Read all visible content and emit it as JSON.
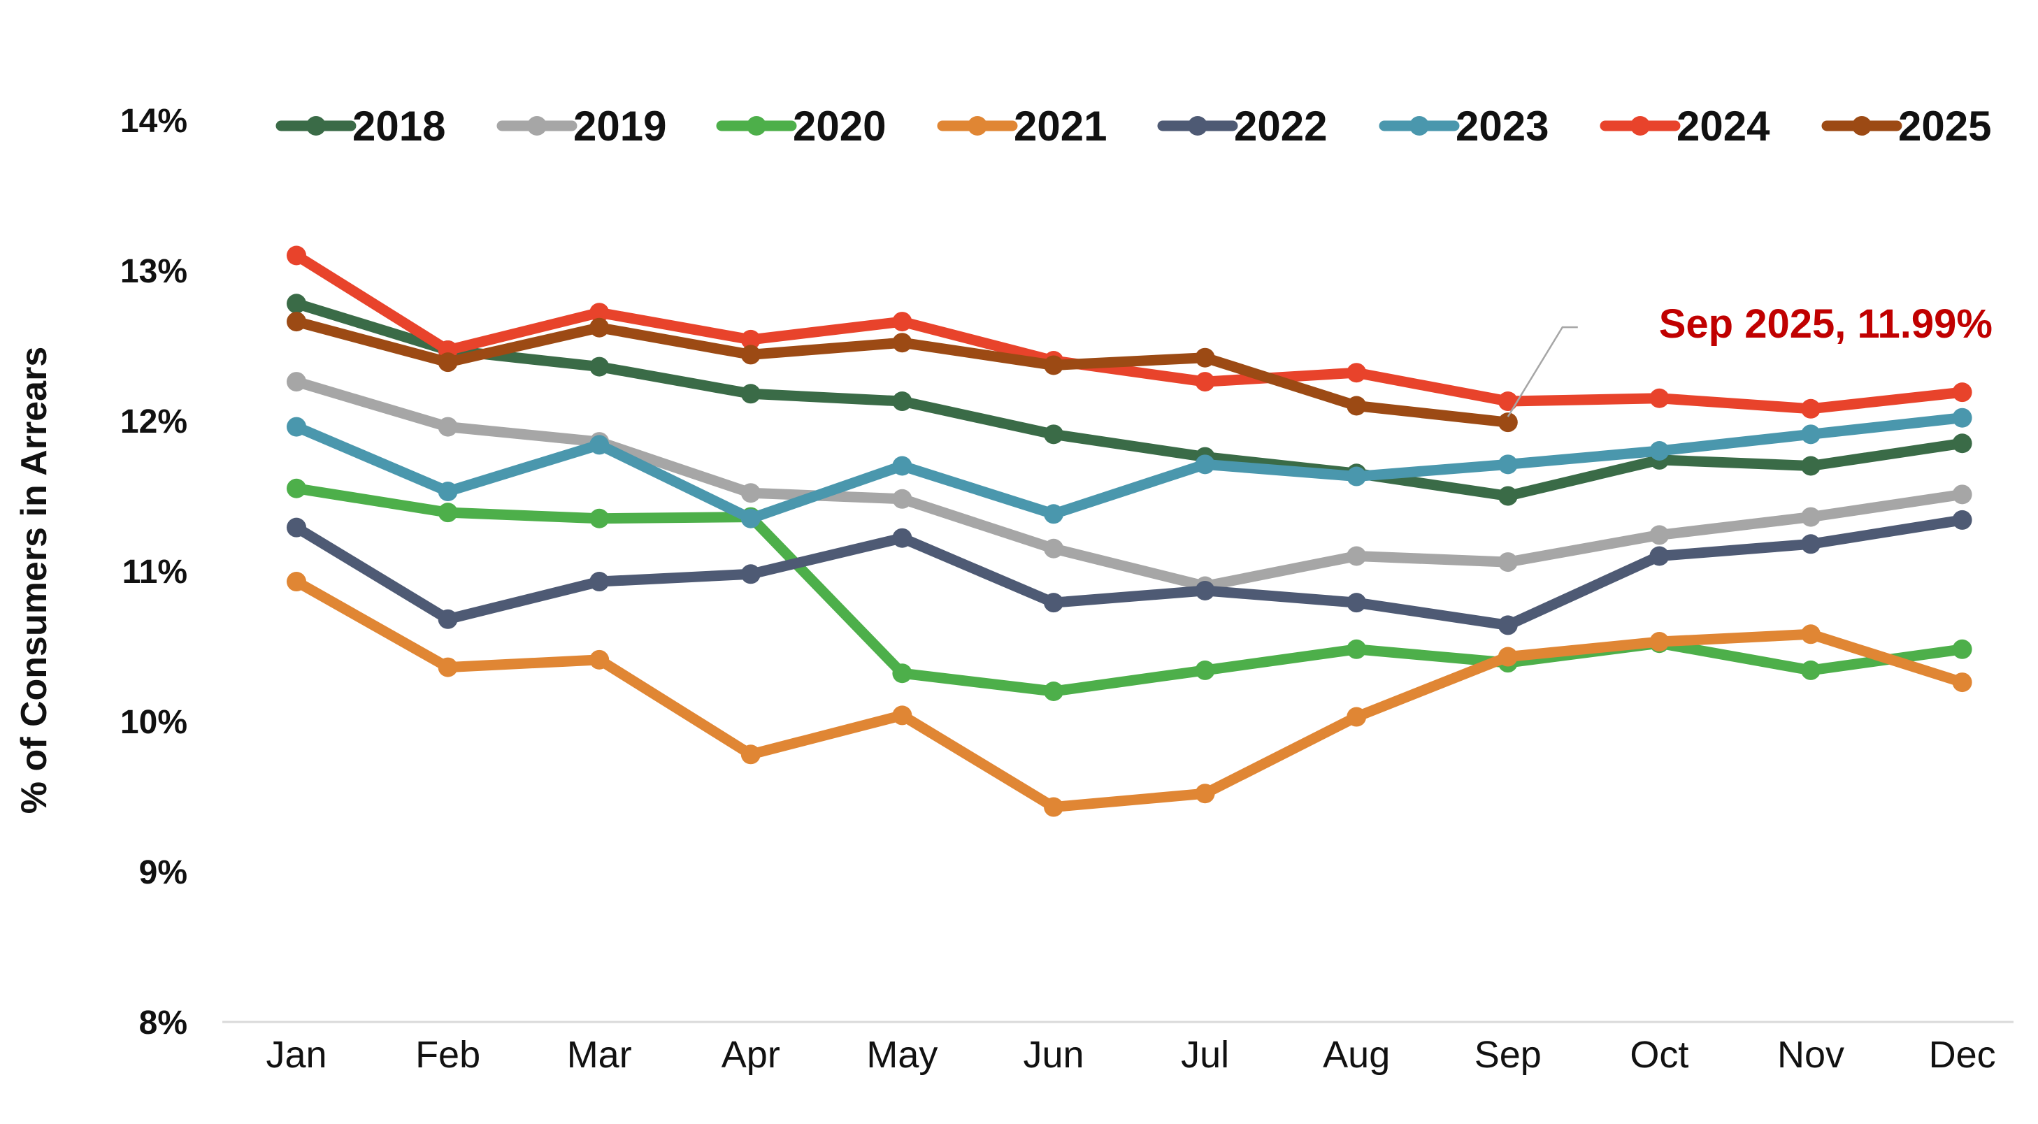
{
  "chart_data": {
    "type": "line",
    "title": "",
    "xlabel": "",
    "ylabel": "% of Consumers in Arrears",
    "ylim": [
      8,
      14
    ],
    "yticks": [
      8,
      9,
      10,
      11,
      12,
      13,
      14
    ],
    "ytick_labels": [
      "8%",
      "9%",
      "10%",
      "11%",
      "12%",
      "13%",
      "14%"
    ],
    "grid": false,
    "legend_position": "top",
    "categories": [
      "Jan",
      "Feb",
      "Mar",
      "Apr",
      "May",
      "Jun",
      "Jul",
      "Aug",
      "Sep",
      "Oct",
      "Nov",
      "Dec"
    ],
    "series": [
      {
        "name": "2018",
        "color": "#3a6b47",
        "values": [
          12.78,
          12.47,
          12.36,
          12.18,
          12.13,
          11.91,
          11.76,
          11.65,
          11.5,
          11.74,
          11.7,
          11.85
        ]
      },
      {
        "name": "2019",
        "color": "#a6a6a6",
        "values": [
          12.26,
          11.96,
          11.86,
          11.52,
          11.48,
          11.15,
          10.9,
          11.1,
          11.06,
          11.24,
          11.36,
          11.51
        ]
      },
      {
        "name": "2020",
        "color": "#4daf4a",
        "values": [
          11.55,
          11.39,
          11.35,
          11.36,
          10.32,
          10.2,
          10.34,
          10.48,
          10.39,
          10.52,
          10.34,
          10.48
        ]
      },
      {
        "name": "2021",
        "color": "#e08634",
        "values": [
          10.93,
          10.36,
          10.41,
          9.78,
          10.04,
          9.43,
          9.52,
          10.03,
          10.43,
          10.53,
          10.58,
          10.26
        ]
      },
      {
        "name": "2022",
        "color": "#4e5a74",
        "values": [
          11.29,
          10.68,
          10.93,
          10.98,
          11.22,
          10.79,
          10.87,
          10.79,
          10.64,
          11.1,
          11.18,
          11.34
        ]
      },
      {
        "name": "2023",
        "color": "#4a97ad",
        "values": [
          11.96,
          11.53,
          11.84,
          11.35,
          11.7,
          11.38,
          11.71,
          11.63,
          11.71,
          11.8,
          11.91,
          12.02
        ]
      },
      {
        "name": "2024",
        "color": "#e8432b",
        "values": [
          13.1,
          12.47,
          12.72,
          12.54,
          12.66,
          12.4,
          12.26,
          12.32,
          12.13,
          12.15,
          12.08,
          12.19
        ]
      },
      {
        "name": "2025",
        "color": "#9c4a14",
        "values": [
          12.66,
          12.39,
          12.62,
          12.44,
          12.52,
          12.37,
          12.42,
          12.1,
          11.99,
          null,
          null,
          null
        ]
      }
    ],
    "annotations": [
      {
        "text": "Sep 2025, 11.99%",
        "x": "Sep",
        "y": 11.99,
        "color": "#c00000"
      }
    ]
  }
}
